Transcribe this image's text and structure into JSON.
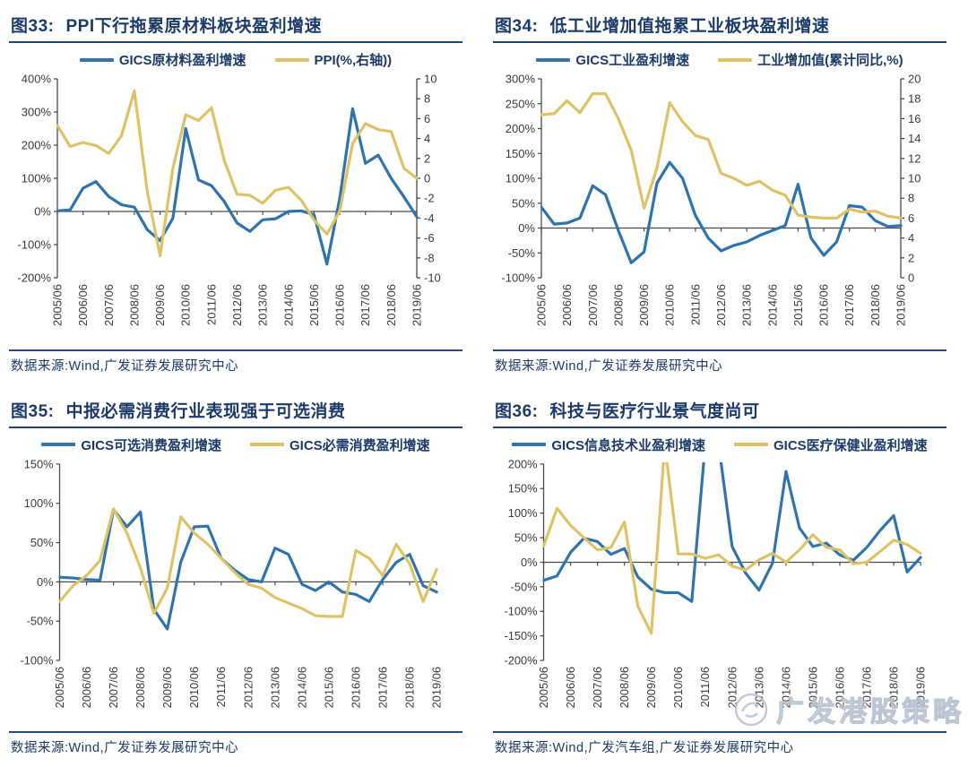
{
  "page": {
    "background": "#ffffff"
  },
  "colors": {
    "blue": "#2e73ae",
    "yellow": "#ddc266",
    "navy": "#1b3a68",
    "axis": "#4a4a4a",
    "tick_text": "#3b3b3b",
    "watermark": "#b6c0cf"
  },
  "watermark": {
    "text": "广发港股策略"
  },
  "chart_data": [
    {
      "fig_label": "图33:",
      "title": "PPI下行拖累原材料板块盈利增速",
      "type": "line",
      "grid": false,
      "legend_position": "top",
      "frequency": "semiannual",
      "source": "数据来源:Wind,广发证券发展研究中心",
      "categories": [
        "2005/06",
        "2005/12",
        "2006/06",
        "2006/12",
        "2007/06",
        "2007/12",
        "2008/06",
        "2008/12",
        "2009/06",
        "2009/12",
        "2010/06",
        "2010/12",
        "2011/06",
        "2011/12",
        "2012/06",
        "2012/12",
        "2013/06",
        "2013/12",
        "2014/06",
        "2014/12",
        "2015/06",
        "2015/12",
        "2016/06",
        "2016/12",
        "2017/06",
        "2017/12",
        "2018/06",
        "2018/12",
        "2019/06"
      ],
      "x_tick_labels": [
        "2005/06",
        "2006/06",
        "2007/06",
        "2008/06",
        "2009/06",
        "2010/06",
        "2011/06",
        "2012/06",
        "2013/06",
        "2014/06",
        "2015/06",
        "2016/06",
        "2017/06",
        "2018/06",
        "2019/06"
      ],
      "left_axis": {
        "min": -200,
        "max": 400,
        "step": 100,
        "suffix": "%"
      },
      "right_axis": {
        "min": -10,
        "max": 10,
        "step": 2
      },
      "series": [
        {
          "name": "GICS原材料盈利增速",
          "axis": "left",
          "color_key": "blue",
          "values": [
            2,
            5,
            70,
            90,
            45,
            20,
            13,
            -55,
            -88,
            -20,
            250,
            95,
            78,
            30,
            -35,
            -60,
            -25,
            -22,
            0,
            2,
            -10,
            -159,
            40,
            310,
            145,
            170,
            100,
            44,
            -16
          ]
        },
        {
          "name": "PPI(%,右轴))",
          "axis": "right",
          "color_key": "yellow",
          "values": [
            5.3,
            3.2,
            3.6,
            3.3,
            2.5,
            4.3,
            8.8,
            -1.3,
            -7.8,
            1.0,
            6.4,
            5.8,
            7.1,
            1.8,
            -1.6,
            -1.7,
            -2.5,
            -1.2,
            -0.9,
            -2.2,
            -4.2,
            -5.6,
            -3.3,
            3.5,
            5.5,
            4.9,
            4.7,
            1.0,
            0.0
          ]
        }
      ]
    },
    {
      "fig_label": "图34:",
      "title": "低工业增加值拖累工业板块盈利增速",
      "type": "line",
      "grid": false,
      "legend_position": "top",
      "frequency": "semiannual",
      "source": "数据来源:Wind,广发证券发展研究中心",
      "categories": [
        "2005/06",
        "2005/12",
        "2006/06",
        "2006/12",
        "2007/06",
        "2007/12",
        "2008/06",
        "2008/12",
        "2009/06",
        "2009/12",
        "2010/06",
        "2010/12",
        "2011/06",
        "2011/12",
        "2012/06",
        "2012/12",
        "2013/06",
        "2013/12",
        "2014/06",
        "2014/12",
        "2015/06",
        "2015/12",
        "2016/06",
        "2016/12",
        "2017/06",
        "2017/12",
        "2018/06",
        "2018/12",
        "2019/06"
      ],
      "x_tick_labels": [
        "2005/06",
        "2006/06",
        "2007/06",
        "2008/06",
        "2009/06",
        "2010/06",
        "2011/06",
        "2012/06",
        "2013/06",
        "2014/06",
        "2015/06",
        "2016/06",
        "2017/06",
        "2018/06",
        "2019/06"
      ],
      "left_axis": {
        "min": -100,
        "max": 300,
        "step": 50,
        "suffix": "%"
      },
      "right_axis": {
        "min": 0,
        "max": 20,
        "step": 2
      },
      "series": [
        {
          "name": "GICS工业盈利增速",
          "axis": "left",
          "color_key": "blue",
          "values": [
            42,
            8,
            10,
            20,
            85,
            67,
            -5,
            -70,
            -48,
            90,
            132,
            100,
            25,
            -20,
            -46,
            -35,
            -28,
            -15,
            -5,
            5,
            88,
            -20,
            -55,
            -28,
            45,
            42,
            15,
            3,
            5
          ]
        },
        {
          "name": "工业增加值(累计同比,%)",
          "axis": "right",
          "color_key": "yellow",
          "values": [
            16.4,
            16.5,
            17.8,
            16.6,
            18.5,
            18.5,
            16.0,
            12.8,
            7.0,
            11.0,
            17.6,
            15.7,
            14.3,
            13.9,
            10.5,
            10.0,
            9.3,
            9.7,
            8.8,
            8.3,
            6.3,
            6.1,
            6.0,
            6.0,
            6.9,
            6.6,
            6.7,
            6.2,
            6.0
          ]
        }
      ]
    },
    {
      "fig_label": "图35:",
      "title": "中报必需消费行业表现强于可选消费",
      "type": "line",
      "grid": false,
      "legend_position": "top",
      "frequency": "semiannual",
      "source": "数据来源:Wind,广发证券发展研究中心",
      "categories": [
        "2005/06",
        "2005/12",
        "2006/06",
        "2006/12",
        "2007/06",
        "2007/12",
        "2008/06",
        "2008/12",
        "2009/06",
        "2009/12",
        "2010/06",
        "2010/12",
        "2011/06",
        "2011/12",
        "2012/06",
        "2012/12",
        "2013/06",
        "2013/12",
        "2014/06",
        "2014/12",
        "2015/06",
        "2015/12",
        "2016/06",
        "2016/12",
        "2017/06",
        "2017/12",
        "2018/06",
        "2018/12",
        "2019/06"
      ],
      "x_tick_labels": [
        "2005/06",
        "2006/06",
        "2007/06",
        "2008/06",
        "2009/06",
        "2010/06",
        "2011/06",
        "2012/06",
        "2013/06",
        "2014/06",
        "2015/06",
        "2016/06",
        "2017/06",
        "2018/06",
        "2019/06"
      ],
      "left_axis": {
        "min": -100,
        "max": 150,
        "step": 50,
        "suffix": "%"
      },
      "right_axis": null,
      "series": [
        {
          "name": "GICS可选消费盈利增速",
          "axis": "left",
          "color_key": "blue",
          "values": [
            6,
            5,
            3,
            2,
            92,
            70,
            89,
            -35,
            -60,
            25,
            70,
            71,
            30,
            15,
            3,
            0,
            43,
            35,
            -3,
            -11,
            0,
            -13,
            -16,
            -25,
            3,
            25,
            35,
            -5,
            -13
          ]
        },
        {
          "name": "GICS必需消费盈利增速",
          "axis": "left",
          "color_key": "yellow",
          "values": [
            -25,
            -5,
            8,
            27,
            93,
            62,
            18,
            -40,
            -8,
            83,
            62,
            48,
            30,
            12,
            -3,
            -8,
            -20,
            -27,
            -34,
            -43,
            -44,
            -44,
            40,
            30,
            8,
            48,
            23,
            -25,
            16
          ]
        }
      ]
    },
    {
      "fig_label": "图36:",
      "title": "科技与医疗行业景气度尚可",
      "type": "line",
      "grid": false,
      "legend_position": "top",
      "frequency": "semiannual",
      "source": "数据来源:Wind,广发汽车组,广发证券发展研究中心",
      "categories": [
        "2005/06",
        "2005/12",
        "2006/06",
        "2006/12",
        "2007/06",
        "2007/12",
        "2008/06",
        "2008/12",
        "2009/06",
        "2009/12",
        "2010/06",
        "2010/12",
        "2011/06",
        "2011/12",
        "2012/06",
        "2012/12",
        "2013/06",
        "2013/12",
        "2014/06",
        "2014/12",
        "2015/06",
        "2015/12",
        "2016/06",
        "2016/12",
        "2017/06",
        "2017/12",
        "2018/06",
        "2018/12",
        "2019/06"
      ],
      "x_tick_labels": [
        "2005/06",
        "2006/06",
        "2007/06",
        "2008/06",
        "2009/06",
        "2010/06",
        "2011/06",
        "2012/06",
        "2013/06",
        "2014/06",
        "2015/06",
        "2016/06",
        "2017/06",
        "2018/06",
        "2019/06"
      ],
      "left_axis": {
        "min": -200,
        "max": 200,
        "step": 50,
        "suffix": "%"
      },
      "right_axis": null,
      "clipped_at_axis_max": true,
      "series": [
        {
          "name": "GICS信息技术业盈利增速",
          "axis": "left",
          "color_key": "blue",
          "values": [
            -37,
            -28,
            20,
            49,
            42,
            16,
            28,
            -30,
            -55,
            -62,
            -62,
            -80,
            240,
            240,
            32,
            -22,
            -57,
            -2,
            185,
            70,
            32,
            39,
            15,
            4,
            30,
            65,
            95,
            -20,
            10
          ]
        },
        {
          "name": "GICS医疗保健业盈利增速",
          "axis": "left",
          "color_key": "yellow",
          "values": [
            33,
            110,
            75,
            50,
            25,
            30,
            82,
            -90,
            -145,
            240,
            17,
            17,
            8,
            15,
            -8,
            -16,
            5,
            18,
            0,
            25,
            56,
            30,
            25,
            -3,
            0,
            22,
            45,
            36,
            18
          ]
        }
      ]
    }
  ]
}
